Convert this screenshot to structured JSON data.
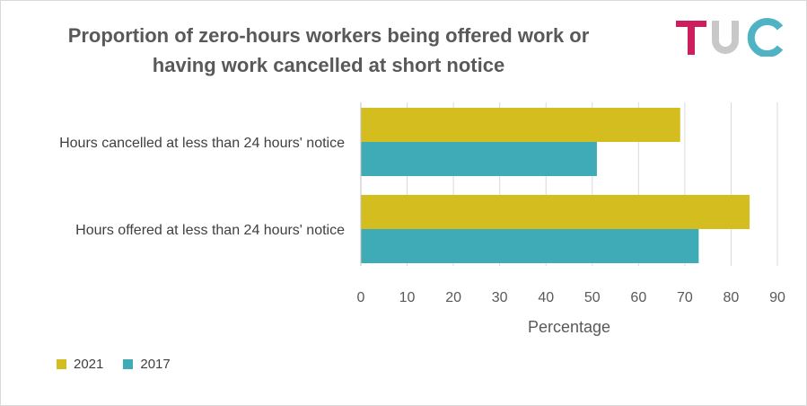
{
  "chart_data": {
    "type": "bar",
    "orientation": "horizontal",
    "title_lines": [
      "Proportion of zero-hours workers being offered work or",
      "having work cancelled at short notice"
    ],
    "categories": [
      "Hours cancelled at less than 24 hours' notice",
      "Hours offered at less than 24 hours' notice"
    ],
    "series": [
      {
        "name": "2021",
        "color": "#d4bd1e",
        "values": [
          69,
          84
        ]
      },
      {
        "name": "2017",
        "color": "#3eabb6",
        "values": [
          51,
          73
        ]
      }
    ],
    "xlabel": "Percentage",
    "xlim": [
      0,
      90
    ],
    "xticks": [
      "0",
      "10",
      "20",
      "30",
      "40",
      "50",
      "60",
      "70",
      "80",
      "90"
    ],
    "grid": true,
    "legend_position": "bottom-left"
  },
  "logo": {
    "text": "TUC",
    "colors": [
      "#cc1f5f",
      "#c8c8c8",
      "#4fb3c4"
    ]
  }
}
